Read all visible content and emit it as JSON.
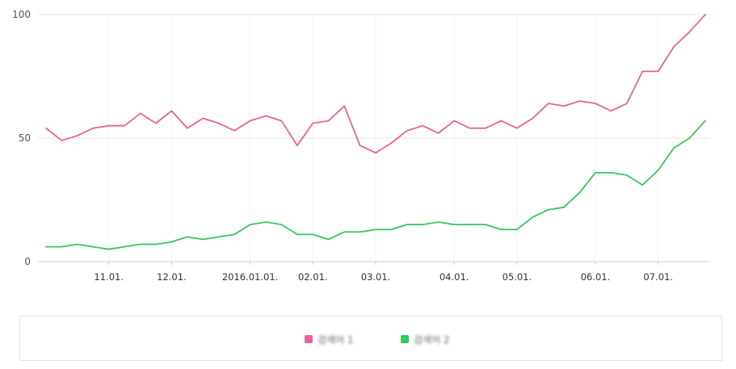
{
  "chart_data": {
    "type": "line",
    "title": "",
    "xlabel": "",
    "ylabel": "",
    "ylim": [
      0,
      100
    ],
    "yticks": [
      {
        "value": 0,
        "label": "0"
      },
      {
        "value": 50,
        "label": "50"
      },
      {
        "value": 100,
        "label": "100"
      }
    ],
    "xticks": [
      {
        "index": 4,
        "label": "11.01."
      },
      {
        "index": 8,
        "label": "12.01."
      },
      {
        "index": 13,
        "label": "2016.01.01."
      },
      {
        "index": 17,
        "label": "02.01."
      },
      {
        "index": 21,
        "label": "03.01."
      },
      {
        "index": 26,
        "label": "04.01."
      },
      {
        "index": 30,
        "label": "05.01."
      },
      {
        "index": 35,
        "label": "06.01."
      },
      {
        "index": 39,
        "label": "07.01."
      }
    ],
    "series": [
      {
        "name": "검색어 1",
        "color": "#e8609a",
        "values": [
          54,
          49,
          51,
          54,
          55,
          55,
          60,
          56,
          61,
          54,
          58,
          56,
          53,
          57,
          59,
          57,
          47,
          56,
          57,
          63,
          47,
          44,
          48,
          53,
          55,
          52,
          57,
          54,
          54,
          57,
          54,
          58,
          64,
          63,
          65,
          64,
          61,
          64,
          77,
          77,
          87,
          93,
          100
        ]
      },
      {
        "name": "검색어 2",
        "color": "#35c759",
        "values": [
          6,
          6,
          7,
          6,
          5,
          6,
          7,
          7,
          8,
          10,
          9,
          10,
          11,
          15,
          16,
          15,
          11,
          11,
          9,
          12,
          12,
          13,
          13,
          15,
          15,
          16,
          15,
          15,
          15,
          13,
          13,
          18,
          21,
          22,
          28,
          36,
          36,
          35,
          31,
          37,
          46,
          50,
          57
        ]
      }
    ]
  }
}
